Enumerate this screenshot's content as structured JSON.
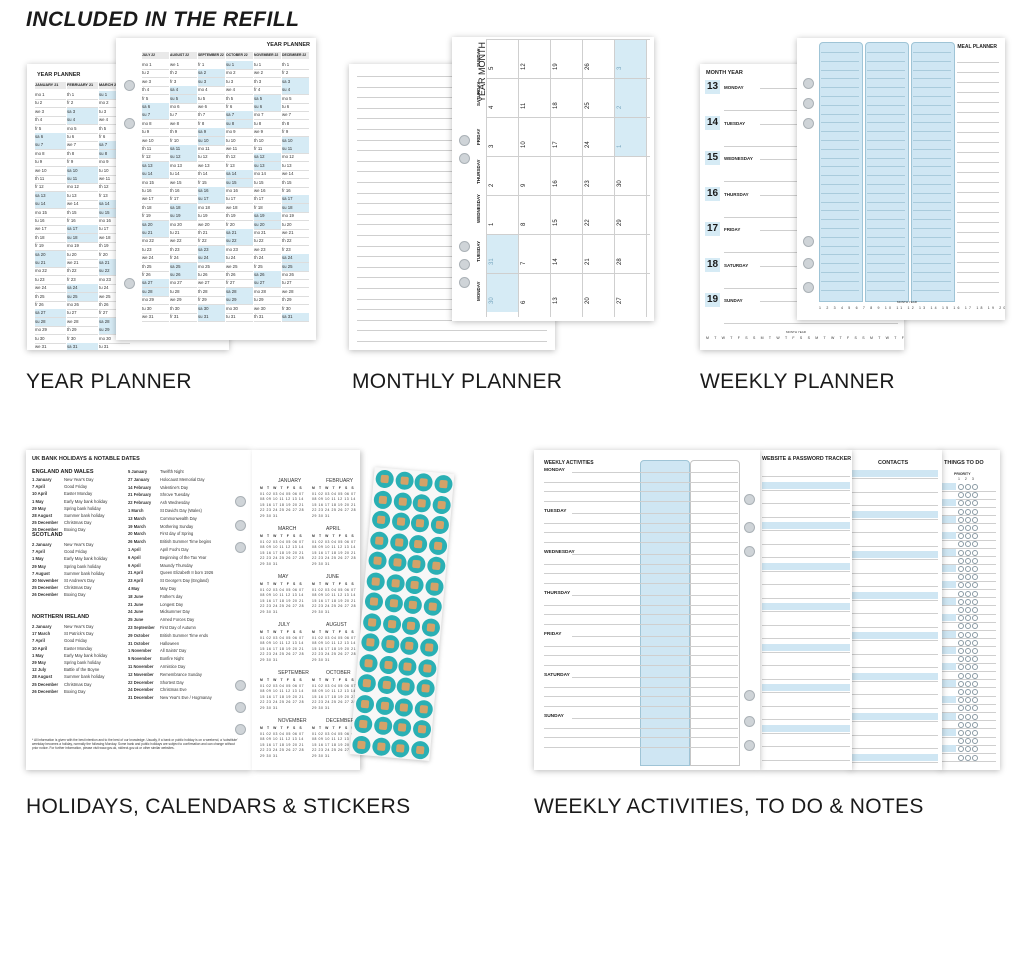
{
  "header": "INCLUDED IN THE REFILL",
  "labels": {
    "year": "YEAR PLANNER",
    "monthly": "MONTHLY PLANNER",
    "weekly": "WEEKLY PLANNER",
    "holidays": "HOLIDAYS, CALENDARS & STICKERS",
    "activities": "WEEKLY ACTIVITIES, TO DO & NOTES"
  },
  "year_planner": {
    "title": "YEAR PLANNER",
    "back_months": [
      "JANUARY 21",
      "FEBRUARY 21",
      "MARCH 21"
    ],
    "front_months": [
      "JULY 22",
      "AUGUST 22",
      "SEPTEMBER 22",
      "OCTOBER 22",
      "NOVEMBER 22",
      "DECEMBER 22"
    ]
  },
  "monthly_planner": {
    "title": "YEAR MONTH",
    "days": [
      "SUNDAY",
      "SATURDAY",
      "FRIDAY",
      "THURSDAY",
      "WEDNESDAY",
      "TUESDAY",
      "MONDAY"
    ],
    "rows": [
      [
        "5",
        "12",
        "19",
        "26",
        "3"
      ],
      [
        "4",
        "11",
        "18",
        "25",
        "2"
      ],
      [
        "3",
        "10",
        "17",
        "24",
        "1"
      ],
      [
        "2",
        "9",
        "16",
        "23",
        "30"
      ],
      [
        "1",
        "8",
        "15",
        "22",
        "29"
      ],
      [
        "31",
        "7",
        "14",
        "21",
        "28"
      ],
      [
        "30",
        "6",
        "13",
        "20",
        "27"
      ]
    ]
  },
  "weekly_planner": {
    "month_year": "MONTH YEAR",
    "meal_planner": "MEAL PLANNER",
    "days": [
      {
        "num": "13",
        "name": "MONDAY"
      },
      {
        "num": "14",
        "name": "TUESDAY"
      },
      {
        "num": "15",
        "name": "WEDNESDAY"
      },
      {
        "num": "16",
        "name": "THURSDAY"
      },
      {
        "num": "17",
        "name": "FRIDAY"
      },
      {
        "num": "18",
        "name": "SATURDAY"
      },
      {
        "num": "19",
        "name": "SUNDAY"
      }
    ],
    "month_year_small": "MONTH YEAR"
  },
  "holidays": {
    "title": "UK BANK HOLIDAYS & NOTABLE DATES",
    "england_title": "ENGLAND AND WALES",
    "england": [
      [
        "1 January",
        "New Year's Day"
      ],
      [
        "7 April",
        "Good Friday"
      ],
      [
        "10 April",
        "Easter Monday"
      ],
      [
        "1 May",
        "Early May bank holiday"
      ],
      [
        "29 May",
        "Spring bank holiday"
      ],
      [
        "28 August",
        "Summer bank holiday"
      ],
      [
        "25 December",
        "Christmas Day"
      ],
      [
        "26 December",
        "Boxing Day"
      ]
    ],
    "scotland_title": "SCOTLAND",
    "scotland": [
      [
        "2 January",
        "New Year's Day"
      ],
      [
        "7 April",
        "Good Friday"
      ],
      [
        "1 May",
        "Early May bank holiday"
      ],
      [
        "29 May",
        "Spring bank holiday"
      ],
      [
        "7 August",
        "Summer bank holiday"
      ],
      [
        "30 November",
        "St Andrew's Day"
      ],
      [
        "25 December",
        "Christmas Day"
      ],
      [
        "26 December",
        "Boxing Day"
      ]
    ],
    "ni_title": "NORTHERN IRELAND",
    "ni": [
      [
        "2 January",
        "New Year's Day"
      ],
      [
        "17 March",
        "St Patrick's Day"
      ],
      [
        "7 April",
        "Good Friday"
      ],
      [
        "10 April",
        "Easter Monday"
      ],
      [
        "1 May",
        "Early May bank holiday"
      ],
      [
        "29 May",
        "Spring bank holiday"
      ],
      [
        "12 July",
        "Battle of the Boyne"
      ],
      [
        "28 August",
        "Summer bank holiday"
      ],
      [
        "25 December",
        "Christmas Day"
      ],
      [
        "26 December",
        "Boxing Day"
      ]
    ],
    "notable": [
      [
        "5 January",
        "Twelfth Night"
      ],
      [
        "27 January",
        "Holocaust Memorial Day"
      ],
      [
        "14 February",
        "Valentine's Day"
      ],
      [
        "21 February",
        "Shrove Tuesday"
      ],
      [
        "22 February",
        "Ash Wednesday"
      ],
      [
        "1 March",
        "St David's Day (Wales)"
      ],
      [
        "13 March",
        "Commonwealth Day"
      ],
      [
        "19 March",
        "Mothering Sunday"
      ],
      [
        "20 March",
        "First day of Spring"
      ],
      [
        "26 March",
        "British Summer Time begins"
      ],
      [
        "1 April",
        "April Fool's Day"
      ],
      [
        "6 April",
        "Beginning of the Tax Year"
      ],
      [
        "6 April",
        "Maundy Thursday"
      ],
      [
        "21 April",
        "Queen Elizabeth II born 1926"
      ],
      [
        "23 April",
        "St George's Day (England)"
      ],
      [
        "4 May",
        "May Day"
      ],
      [
        "18 June",
        "Father's day"
      ],
      [
        "21 June",
        "Longest Day"
      ],
      [
        "24 June",
        "Midsummer Day"
      ],
      [
        "25 June",
        "Armed Forces Day"
      ],
      [
        "23 September",
        "First Day of Autumn"
      ],
      [
        "29 October",
        "British Summer Time ends"
      ],
      [
        "31 October",
        "Halloween"
      ],
      [
        "1 November",
        "All Saints' Day"
      ],
      [
        "5 November",
        "Bonfire Night"
      ],
      [
        "11 November",
        "Armistice Day"
      ],
      [
        "12 November",
        "Remembrance Sunday"
      ],
      [
        "22 December",
        "Shortest Day"
      ],
      [
        "24 December",
        "Christmas Eve"
      ],
      [
        "31 December",
        "New Year's Eve / Hogmanay"
      ]
    ],
    "months": [
      "JANUARY",
      "FEBRUARY",
      "MARCH",
      "APRIL",
      "MAY",
      "JUNE",
      "JULY",
      "AUGUST",
      "SEPTEMBER",
      "OCTOBER",
      "NOVEMBER",
      "DECEMBER"
    ],
    "weekdays": "M T W T F S S"
  },
  "activities": {
    "weekly_title": "WEEKLY ACTIVITIES",
    "days": [
      "MONDAY",
      "TUESDAY",
      "WEDNESDAY",
      "THURSDAY",
      "FRIDAY",
      "SATURDAY",
      "SUNDAY"
    ],
    "password_title": "WEBSITE & PASSWORD TRACKER",
    "contacts_title": "CONTACTS",
    "todo_title": "THINGS TO DO",
    "priority": "PRIORITY",
    "priority_cols": "1 2 3"
  }
}
